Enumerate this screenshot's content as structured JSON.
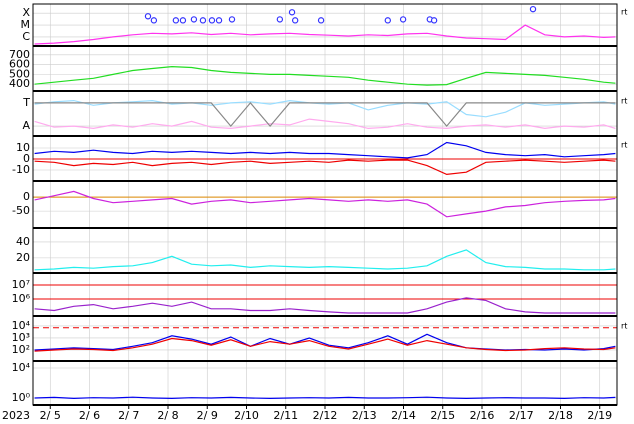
{
  "year": "2023",
  "time_axis": {
    "xlim": [
      4.56,
      19.44
    ],
    "xticks": [
      {
        "value": 5,
        "label": "2/ 5"
      },
      {
        "value": 6,
        "label": "2/ 6"
      },
      {
        "value": 7,
        "label": "2/ 7"
      },
      {
        "value": 8,
        "label": "2/ 8"
      },
      {
        "value": 9,
        "label": "2/ 9"
      },
      {
        "value": 10,
        "label": "2/10"
      },
      {
        "value": 11,
        "label": "2/11"
      },
      {
        "value": 12,
        "label": "2/12"
      },
      {
        "value": 13,
        "label": "2/13"
      },
      {
        "value": 14,
        "label": "2/14"
      },
      {
        "value": 15,
        "label": "2/15"
      },
      {
        "value": 16,
        "label": "2/16"
      },
      {
        "value": 17,
        "label": "2/17"
      },
      {
        "value": 18,
        "label": "2/18"
      },
      {
        "value": 19,
        "label": "2/19"
      }
    ]
  },
  "chart_data": [
    {
      "type": "line",
      "log": true,
      "corner_label": "rt",
      "ylim": [
        1.7e-07,
        0.0006
      ],
      "yticks": [
        {
          "value": 0.0001,
          "label": "X"
        },
        {
          "value": 1e-05,
          "label": "M"
        },
        {
          "value": 1e-06,
          "label": "C"
        }
      ],
      "x": [
        4.6,
        5.1,
        5.6,
        6.1,
        6.6,
        7.1,
        7.6,
        8.1,
        8.6,
        9.1,
        9.6,
        10.1,
        10.6,
        11.1,
        11.6,
        12.1,
        12.6,
        13.1,
        13.6,
        14.1,
        14.6,
        15.1,
        15.6,
        16.1,
        16.6,
        17.1,
        17.6,
        18.1,
        18.6,
        19.1,
        19.4
      ],
      "series": [
        {
          "color": "#ff33ee",
          "values": [
            2.5e-07,
            3e-07,
            4e-07,
            6e-07,
            1e-06,
            1.5e-06,
            2e-06,
            1.8e-06,
            2.2e-06,
            1.6e-06,
            2e-06,
            1.5e-06,
            1.8e-06,
            2e-06,
            1.6e-06,
            1.4e-06,
            1.2e-06,
            1.5e-06,
            1.3e-06,
            1.8e-06,
            2e-06,
            1.2e-06,
            8e-07,
            7e-07,
            6e-07,
            1e-05,
            1.5e-06,
            1e-06,
            1.2e-06,
            9e-07,
            1e-06
          ]
        },
        {
          "color": "#3333ff",
          "marker": "circle",
          "x": [
            7.49,
            7.64,
            8.2,
            8.38,
            8.66,
            8.89,
            9.12,
            9.3,
            9.63,
            10.85,
            11.16,
            11.24,
            11.9,
            13.6,
            13.99,
            14.67,
            14.78,
            17.3
          ],
          "values": [
            5.5e-05,
            2.5e-05,
            2.5e-05,
            2.5e-05,
            3e-05,
            2.5e-05,
            2.5e-05,
            2.5e-05,
            3e-05,
            3e-05,
            0.00012,
            2.5e-05,
            2.5e-05,
            2.5e-05,
            3e-05,
            3e-05,
            2.5e-05,
            0.00022
          ]
        }
      ]
    },
    {
      "type": "line",
      "ylim": [
        330,
        780
      ],
      "yticks": [
        400,
        500,
        600,
        700
      ],
      "x": [
        4.6,
        5.1,
        5.6,
        6.1,
        6.6,
        7.1,
        7.6,
        8.1,
        8.6,
        9.1,
        9.6,
        10.1,
        10.6,
        11.1,
        11.6,
        12.1,
        12.6,
        13.1,
        13.6,
        14.1,
        14.6,
        15.1,
        15.6,
        16.1,
        16.6,
        17.1,
        17.6,
        18.1,
        18.6,
        19.1,
        19.4
      ],
      "series": [
        {
          "color": "#22dd22",
          "values": [
            400,
            420,
            440,
            460,
            500,
            540,
            560,
            580,
            570,
            540,
            520,
            510,
            500,
            500,
            490,
            480,
            470,
            440,
            420,
            400,
            390,
            395,
            460,
            520,
            510,
            500,
            490,
            470,
            450,
            420,
            410
          ]
        }
      ]
    },
    {
      "type": "line",
      "corner_label": "rt",
      "ylim": [
        -0.43,
        1.43
      ],
      "yticks": [
        {
          "value": 1,
          "label": "T"
        },
        {
          "value": 0,
          "label": "A"
        }
      ],
      "x": [
        4.6,
        5.1,
        5.6,
        6.1,
        6.6,
        7.1,
        7.6,
        8.1,
        8.6,
        9.1,
        9.6,
        10.1,
        10.6,
        11.1,
        11.6,
        12.1,
        12.6,
        13.1,
        13.6,
        14.1,
        14.6,
        15.1,
        15.6,
        16.1,
        16.6,
        17.1,
        17.6,
        18.1,
        18.6,
        19.1,
        19.4
      ],
      "series": [
        {
          "color": "#99ddff",
          "values": [
            0.95,
            1.05,
            1.1,
            0.9,
            1.0,
            1.05,
            1.1,
            0.95,
            1.0,
            0.9,
            1.0,
            1.05,
            0.95,
            1.1,
            1.0,
            0.95,
            1.0,
            0.7,
            0.9,
            1.0,
            0.95,
            1.05,
            0.5,
            0.4,
            0.6,
            1.0,
            0.9,
            0.95,
            1.0,
            1.05,
            0.95
          ]
        },
        {
          "color": "#ffaaee",
          "values": [
            0.2,
            -0.05,
            0.0,
            -0.1,
            0.05,
            -0.05,
            0.1,
            0.0,
            0.2,
            -0.05,
            -0.1,
            0.0,
            0.1,
            0.05,
            0.3,
            0.2,
            0.1,
            -0.1,
            -0.05,
            0.1,
            -0.05,
            -0.1,
            0.0,
            0.05,
            -0.05,
            0.05,
            -0.1,
            0.0,
            -0.05,
            0.05,
            -0.1
          ]
        },
        {
          "color": "#888888",
          "values": [
            1,
            1,
            1,
            1,
            1,
            1,
            1,
            1,
            1,
            1,
            0,
            1,
            0,
            1,
            1,
            1,
            1,
            1,
            1,
            1,
            1,
            0,
            1,
            1,
            1,
            1,
            1,
            1,
            1,
            1,
            1
          ]
        }
      ]
    },
    {
      "type": "line",
      "corner_label": "rt",
      "ylim": [
        -20,
        20
      ],
      "yticks": [
        10,
        0,
        -10
      ],
      "reference_lines": [
        {
          "value": 0,
          "color": "#ee0000"
        }
      ],
      "x": [
        4.6,
        5.1,
        5.6,
        6.1,
        6.6,
        7.1,
        7.6,
        8.1,
        8.6,
        9.1,
        9.6,
        10.1,
        10.6,
        11.1,
        11.6,
        12.1,
        12.6,
        13.1,
        13.6,
        14.1,
        14.6,
        15.1,
        15.6,
        16.1,
        16.6,
        17.1,
        17.6,
        18.1,
        18.6,
        19.1,
        19.4
      ],
      "series": [
        {
          "color": "#0000ee",
          "values": [
            5,
            7,
            6,
            8,
            6,
            5,
            7,
            6,
            7,
            6,
            5,
            6,
            5,
            6,
            5,
            5,
            4,
            3,
            2,
            1,
            4,
            15,
            12,
            6,
            4,
            3,
            4,
            2,
            3,
            4,
            5
          ]
        },
        {
          "color": "#ee0000",
          "values": [
            -2,
            -3,
            -6,
            -4,
            -5,
            -3,
            -6,
            -4,
            -3,
            -5,
            -3,
            -2,
            -4,
            -3,
            -2,
            -3,
            -1,
            -2,
            -1,
            -1,
            -6,
            -14,
            -12,
            -3,
            -2,
            -1,
            -2,
            -3,
            -2,
            -1,
            -2
          ]
        }
      ]
    },
    {
      "type": "line",
      "ylim": [
        -110,
        50
      ],
      "yticks": [
        0,
        -50
      ],
      "reference_lines": [
        {
          "value": 0,
          "color": "#dd8800"
        }
      ],
      "x": [
        4.6,
        5.1,
        5.6,
        6.1,
        6.6,
        7.1,
        7.6,
        8.1,
        8.6,
        9.1,
        9.6,
        10.1,
        10.6,
        11.1,
        11.6,
        12.1,
        12.6,
        13.1,
        13.6,
        14.1,
        14.6,
        15.1,
        15.6,
        16.1,
        16.6,
        17.1,
        17.6,
        18.1,
        18.6,
        19.1,
        19.4
      ],
      "series": [
        {
          "color": "#cc22dd",
          "values": [
            -10,
            5,
            20,
            -5,
            -20,
            -15,
            -10,
            -5,
            -25,
            -15,
            -10,
            -20,
            -15,
            -10,
            -5,
            -10,
            -15,
            -10,
            -15,
            -10,
            -25,
            -70,
            -60,
            -50,
            -35,
            -30,
            -20,
            -15,
            -12,
            -10,
            -5
          ]
        }
      ]
    },
    {
      "type": "line",
      "ylim": [
        1,
        55
      ],
      "yticks": [
        20,
        40
      ],
      "x": [
        4.6,
        5.1,
        5.6,
        6.1,
        6.6,
        7.1,
        7.6,
        8.1,
        8.6,
        9.1,
        9.6,
        10.1,
        10.6,
        11.1,
        11.6,
        12.1,
        12.6,
        13.1,
        13.6,
        14.1,
        14.6,
        15.1,
        15.6,
        16.1,
        16.6,
        17.1,
        17.6,
        18.1,
        18.6,
        19.1,
        19.4
      ],
      "series": [
        {
          "color": "#22eeee",
          "values": [
            5,
            6,
            8,
            7,
            9,
            10,
            14,
            22,
            12,
            10,
            11,
            8,
            10,
            9,
            8,
            9,
            8,
            7,
            6,
            7,
            10,
            22,
            30,
            14,
            9,
            8,
            6,
            6,
            5,
            5,
            6
          ]
        }
      ]
    },
    {
      "type": "line",
      "log": true,
      "ylim": [
        61000.0,
        52000000.0
      ],
      "yticks": [
        {
          "value": 10000000.0,
          "label": "10⁷"
        },
        {
          "value": 1000000.0,
          "label": "10⁶"
        }
      ],
      "reference_lines": [
        {
          "value": 10000000.0,
          "color": "#ee0000"
        },
        {
          "value": 1000000.0,
          "color": "#ee0000"
        }
      ],
      "x": [
        4.6,
        5.1,
        5.6,
        6.1,
        6.6,
        7.1,
        7.6,
        8.1,
        8.6,
        9.1,
        9.6,
        10.1,
        10.6,
        11.1,
        11.6,
        12.1,
        12.6,
        13.1,
        13.6,
        14.1,
        14.6,
        15.1,
        15.6,
        16.1,
        16.6,
        17.1,
        17.6,
        18.1,
        18.6,
        19.1,
        19.4
      ],
      "series": [
        {
          "color": "#9922cc",
          "values": [
            200000.0,
            150000.0,
            300000.0,
            400000.0,
            200000.0,
            300000.0,
            500000.0,
            300000.0,
            600000.0,
            200000.0,
            200000.0,
            150000.0,
            150000.0,
            200000.0,
            150000.0,
            120000.0,
            100000.0,
            100000.0,
            100000.0,
            100000.0,
            200000.0,
            600000.0,
            1200000.0,
            800000.0,
            200000.0,
            120000.0,
            100000.0,
            100000.0,
            100000.0,
            100000.0,
            100000.0
          ]
        }
      ]
    },
    {
      "type": "line",
      "log": true,
      "corner_label": "rt",
      "ylim": [
        12,
        46000.0
      ],
      "yticks": [
        {
          "value": 10000.0,
          "label": "10⁴"
        },
        {
          "value": 1000.0,
          "label": "10³"
        },
        {
          "value": 100.0,
          "label": "10²"
        }
      ],
      "reference_lines": [
        {
          "value": 7000,
          "color": "#ee0000",
          "dash": true
        }
      ],
      "x": [
        4.6,
        5.1,
        5.6,
        6.1,
        6.6,
        7.1,
        7.6,
        8.1,
        8.6,
        9.1,
        9.6,
        10.1,
        10.6,
        11.1,
        11.6,
        12.1,
        12.6,
        13.1,
        13.6,
        14.1,
        14.6,
        15.1,
        15.6,
        16.1,
        16.6,
        17.1,
        17.6,
        18.1,
        18.6,
        19.1,
        19.4
      ],
      "series": [
        {
          "color": "#0000ee",
          "values": [
            100,
            120,
            150,
            130,
            110,
            200,
            400,
            1500,
            800,
            300,
            1200,
            200,
            900,
            300,
            1000,
            250,
            150,
            400,
            1500,
            300,
            2000,
            400,
            150,
            120,
            100,
            110,
            100,
            120,
            100,
            130,
            200
          ]
        },
        {
          "color": "#ee0000",
          "values": [
            80,
            100,
            120,
            110,
            90,
            150,
            300,
            900,
            600,
            250,
            700,
            200,
            500,
            300,
            600,
            200,
            120,
            300,
            800,
            250,
            600,
            300,
            150,
            110,
            90,
            100,
            130,
            150,
            120,
            110,
            150
          ]
        }
      ]
    },
    {
      "type": "line",
      "log": true,
      "ylim": [
        0.117,
        63000.0
      ],
      "yticks": [
        {
          "value": 10000.0,
          "label": "10⁴"
        },
        {
          "value": 1,
          "label": "10⁰"
        }
      ],
      "x": [
        4.6,
        5.1,
        5.6,
        6.1,
        6.6,
        7.1,
        7.6,
        8.1,
        8.6,
        9.1,
        9.6,
        10.1,
        10.6,
        11.1,
        11.6,
        12.1,
        12.6,
        13.1,
        13.6,
        14.1,
        14.6,
        15.1,
        15.6,
        16.1,
        16.6,
        17.1,
        17.6,
        18.1,
        18.6,
        19.1,
        19.4
      ],
      "series": [
        {
          "color": "#0000ee",
          "values": [
            1,
            1.2,
            0.9,
            1.1,
            1,
            1.3,
            1,
            0.9,
            1.1,
            1,
            1.2,
            1,
            0.9,
            1,
            1.1,
            1,
            1.2,
            1,
            1,
            1.1,
            1.3,
            1,
            0.9,
            1,
            1.1,
            1,
            1,
            0.9,
            1.1,
            1,
            1.2
          ]
        }
      ]
    }
  ]
}
